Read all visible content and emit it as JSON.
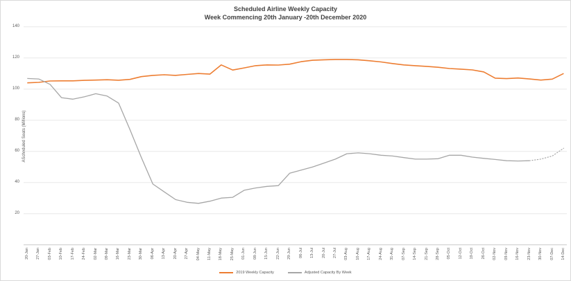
{
  "title": {
    "line1": "Scheduled Airline Weekly Capacity",
    "line2": "Week Commencing 20th January -20th December 2020"
  },
  "y_axis": {
    "label": "AScheduled Seats (Millions)",
    "ticks": [
      20,
      40,
      60,
      80,
      100,
      120,
      140
    ]
  },
  "legend": [
    {
      "label": "2019 Weekly Capacity",
      "color": "#ED7D31"
    },
    {
      "label": "Adjusted Capacity By Week",
      "color": "#A6A6A6"
    }
  ],
  "colors": {
    "grid": "#e8e8e8",
    "axis": "#c9c9c9",
    "tick_text": "#595959",
    "title_text": "#404040"
  },
  "chart_data": {
    "type": "line",
    "title": "Scheduled Airline Weekly Capacity",
    "subtitle": "Week Commencing 20th January -20th December 2020",
    "xlabel": "",
    "ylabel": "AScheduled Seats (Millions)",
    "ylim": [
      0,
      140
    ],
    "yticks": [
      20,
      40,
      60,
      80,
      100,
      120,
      140
    ],
    "grid": true,
    "legend_position": "bottom",
    "categories": [
      "20-Jan",
      "27-Jan",
      "03-Feb",
      "10-Feb",
      "17-Feb",
      "24-Feb",
      "02-Mar",
      "09-Mar",
      "16-Mar",
      "23-Mar",
      "30-Mar",
      "06-Apr",
      "13-Apr",
      "20-Apr",
      "27-Apr",
      "04-May",
      "11-May",
      "18-May",
      "25-May",
      "01-Jun",
      "08-Jun",
      "15-Jun",
      "22-Jun",
      "29-Jun",
      "06-Jul",
      "13-Jul",
      "20-Jul",
      "27-Jul",
      "03-Aug",
      "10-Aug",
      "17-Aug",
      "24-Aug",
      "31-Aug",
      "07-Sep",
      "14-Sep",
      "21-Sep",
      "28-Sep",
      "05-Oct",
      "12-Oct",
      "19-Oct",
      "26-Oct",
      "02-Nov",
      "09-Nov",
      "16-Nov",
      "23-Nov",
      "30-Nov",
      "07-Dec",
      "14-Dec"
    ],
    "series": [
      {
        "name": "2019 Weekly Capacity",
        "color": "#ED7D31",
        "style": "solid",
        "values": [
          104,
          104.3,
          105.2,
          105.3,
          105.3,
          105.6,
          105.8,
          106,
          105.7,
          106.2,
          108,
          108.8,
          109.2,
          108.8,
          109.4,
          110,
          109.6,
          115.5,
          112.2,
          113.6,
          115,
          115.5,
          115.4,
          116,
          117.6,
          118.5,
          118.8,
          119,
          119,
          118.8,
          118.2,
          117.4,
          116.4,
          115.5,
          115,
          114.6,
          114,
          113.2,
          112.8,
          112.3,
          111,
          107,
          106.7,
          107.1,
          106.5,
          105.8,
          106.4,
          110
        ]
      },
      {
        "name": "Adjusted Capacity By Week",
        "color": "#A6A6A6",
        "style": "solid-then-dotted",
        "dotted_from_index": 44,
        "values": [
          106.8,
          106.5,
          103,
          94.5,
          93.5,
          95,
          97,
          95.5,
          91,
          74,
          56,
          39,
          34,
          29,
          27.3,
          26.6,
          28,
          30,
          30.5,
          35,
          36.5,
          37.5,
          38,
          46,
          48,
          50,
          52.5,
          55,
          58.5,
          59,
          58.5,
          57.5,
          57,
          56,
          55,
          55,
          55.3,
          57.5,
          57.5,
          56.3,
          55.5,
          54.8,
          54,
          53.8,
          54,
          55,
          57,
          62
        ]
      }
    ]
  }
}
